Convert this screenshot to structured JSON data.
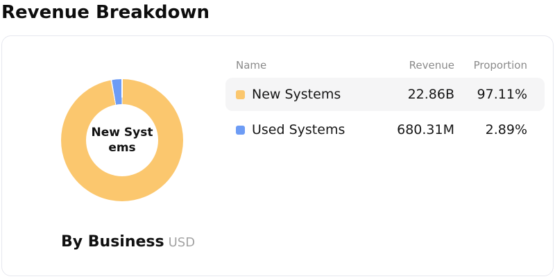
{
  "page": {
    "title": "Revenue Breakdown"
  },
  "card": {
    "chart": {
      "center_label": "New Systems",
      "caption": "By Business",
      "unit": "USD"
    },
    "table": {
      "headers": [
        "Name",
        "Revenue",
        "Proportion"
      ],
      "rows": [
        {
          "name": "New Systems",
          "revenue": "22.86B",
          "proportion": "97.11%",
          "color": "#FBC76E",
          "highlighted": true
        },
        {
          "name": "Used Systems",
          "revenue": "680.31M",
          "proportion": "2.89%",
          "color": "#6D9CF5",
          "highlighted": false
        }
      ]
    }
  },
  "chart_data": {
    "type": "pie",
    "subtype": "donut",
    "title": "Revenue Breakdown",
    "caption": "By Business",
    "unit": "USD",
    "categories": [
      "New Systems",
      "Used Systems"
    ],
    "values": [
      22860000000,
      680310000
    ],
    "value_labels": [
      "22.86B",
      "680.31M"
    ],
    "proportions": [
      97.11,
      2.89
    ],
    "colors": [
      "#FBC76E",
      "#6D9CF5"
    ],
    "center_label": "New Systems",
    "start_angle": "top",
    "direction": "clockwise",
    "legend_position": "table-right"
  }
}
